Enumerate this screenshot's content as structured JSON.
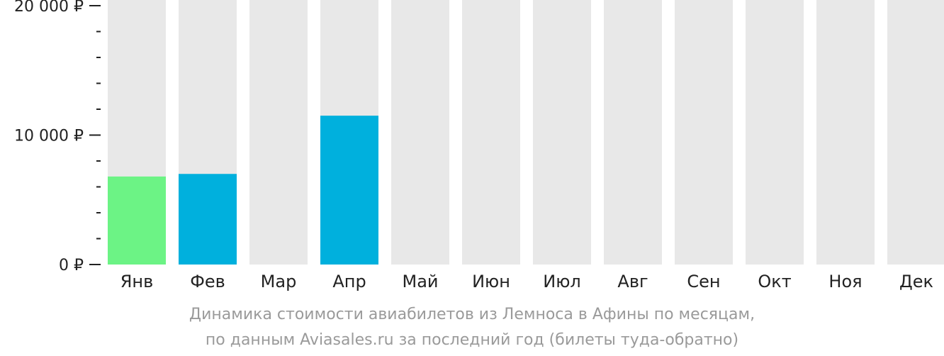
{
  "chart_data": {
    "type": "bar",
    "categories": [
      "Янв",
      "Фев",
      "Мар",
      "Апр",
      "Май",
      "Июн",
      "Июл",
      "Авг",
      "Сен",
      "Окт",
      "Ноя",
      "Дек"
    ],
    "values": [
      6800,
      7000,
      null,
      11500,
      null,
      null,
      null,
      null,
      null,
      null,
      null,
      null
    ],
    "bar_colors": [
      "#6cf385",
      "#00b0dd",
      null,
      "#00b0dd",
      null,
      null,
      null,
      null,
      null,
      null,
      null,
      null
    ],
    "background_bar_color": "#e8e8e8",
    "ylim": [
      0,
      20000
    ],
    "y_major_ticks": [
      {
        "value": 0,
        "label": "0 ₽"
      },
      {
        "value": 10000,
        "label": "10 000 ₽"
      },
      {
        "value": 20000,
        "label": "20 000 ₽"
      }
    ],
    "y_minor_tick_step": 2000,
    "caption": [
      "Динамика стоимости авиабилетов из Лемноса в Афины по месяцам,",
      "по данным Aviasales.ru за последний год (билеты туда-обратно)"
    ]
  }
}
